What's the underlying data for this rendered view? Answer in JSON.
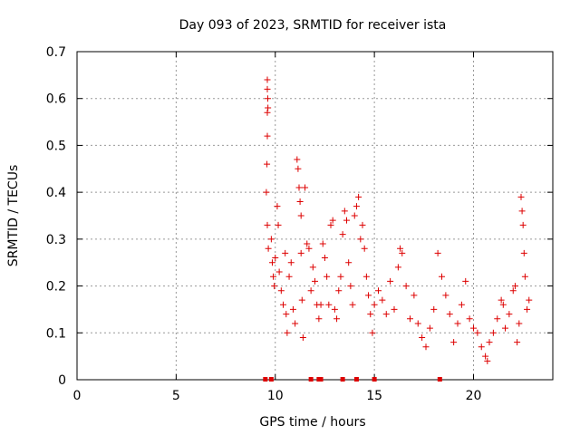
{
  "chart_data": {
    "type": "scatter",
    "title": "Day 093 of 2023, SRMTID for receiver ista",
    "xlabel": "GPS time / hours",
    "ylabel": "SRMTID / TECUs",
    "xlim": [
      0,
      24
    ],
    "ylim": [
      0,
      0.7
    ],
    "xticks": [
      0,
      5,
      10,
      15,
      20
    ],
    "yticks": [
      0,
      0.1,
      0.2,
      0.3,
      0.4,
      0.5,
      0.6,
      0.7
    ],
    "grid": true,
    "marker": "+",
    "color": "#dd0000",
    "series": [
      {
        "name": "SRMTID",
        "points": [
          [
            9.6,
            0.64
          ],
          [
            9.6,
            0.62
          ],
          [
            9.62,
            0.6
          ],
          [
            9.63,
            0.58
          ],
          [
            9.6,
            0.57
          ],
          [
            9.6,
            0.52
          ],
          [
            9.58,
            0.46
          ],
          [
            9.55,
            0.4
          ],
          [
            9.6,
            0.33
          ],
          [
            9.65,
            0.28
          ],
          [
            9.8,
            0.3
          ],
          [
            9.85,
            0.25
          ],
          [
            9.9,
            0.22
          ],
          [
            9.95,
            0.2
          ],
          [
            10.0,
            0.26
          ],
          [
            10.1,
            0.37
          ],
          [
            10.15,
            0.33
          ],
          [
            10.2,
            0.23
          ],
          [
            10.3,
            0.19
          ],
          [
            10.4,
            0.16
          ],
          [
            10.5,
            0.27
          ],
          [
            10.55,
            0.14
          ],
          [
            10.6,
            0.1
          ],
          [
            10.7,
            0.22
          ],
          [
            10.8,
            0.25
          ],
          [
            10.9,
            0.15
          ],
          [
            11.0,
            0.12
          ],
          [
            11.1,
            0.47
          ],
          [
            11.15,
            0.45
          ],
          [
            11.2,
            0.41
          ],
          [
            11.25,
            0.38
          ],
          [
            11.3,
            0.35
          ],
          [
            11.3,
            0.27
          ],
          [
            11.35,
            0.17
          ],
          [
            11.4,
            0.09
          ],
          [
            11.5,
            0.41
          ],
          [
            11.6,
            0.29
          ],
          [
            11.7,
            0.28
          ],
          [
            11.8,
            0.19
          ],
          [
            11.9,
            0.24
          ],
          [
            12.0,
            0.21
          ],
          [
            12.1,
            0.16
          ],
          [
            12.2,
            0.13
          ],
          [
            12.3,
            0.16
          ],
          [
            12.4,
            0.29
          ],
          [
            12.5,
            0.26
          ],
          [
            12.6,
            0.22
          ],
          [
            12.7,
            0.16
          ],
          [
            12.8,
            0.33
          ],
          [
            12.9,
            0.34
          ],
          [
            13.0,
            0.15
          ],
          [
            13.1,
            0.13
          ],
          [
            13.2,
            0.19
          ],
          [
            13.3,
            0.22
          ],
          [
            13.4,
            0.31
          ],
          [
            13.5,
            0.36
          ],
          [
            13.6,
            0.34
          ],
          [
            13.7,
            0.25
          ],
          [
            13.8,
            0.2
          ],
          [
            13.9,
            0.16
          ],
          [
            14.0,
            0.35
          ],
          [
            14.1,
            0.37
          ],
          [
            14.2,
            0.39
          ],
          [
            14.3,
            0.3
          ],
          [
            14.4,
            0.33
          ],
          [
            14.5,
            0.28
          ],
          [
            14.6,
            0.22
          ],
          [
            14.7,
            0.18
          ],
          [
            14.8,
            0.14
          ],
          [
            14.9,
            0.1
          ],
          [
            15.0,
            0.16
          ],
          [
            15.2,
            0.19
          ],
          [
            15.4,
            0.17
          ],
          [
            15.6,
            0.14
          ],
          [
            15.8,
            0.21
          ],
          [
            16.0,
            0.15
          ],
          [
            16.2,
            0.24
          ],
          [
            16.3,
            0.28
          ],
          [
            16.4,
            0.27
          ],
          [
            16.6,
            0.2
          ],
          [
            16.8,
            0.13
          ],
          [
            17.0,
            0.18
          ],
          [
            17.2,
            0.12
          ],
          [
            17.4,
            0.09
          ],
          [
            17.6,
            0.07
          ],
          [
            17.8,
            0.11
          ],
          [
            18.0,
            0.15
          ],
          [
            18.2,
            0.27
          ],
          [
            18.4,
            0.22
          ],
          [
            18.6,
            0.18
          ],
          [
            18.8,
            0.14
          ],
          [
            19.0,
            0.08
          ],
          [
            19.2,
            0.12
          ],
          [
            19.4,
            0.16
          ],
          [
            19.6,
            0.21
          ],
          [
            19.8,
            0.13
          ],
          [
            20.0,
            0.11
          ],
          [
            20.2,
            0.1
          ],
          [
            20.4,
            0.07
          ],
          [
            20.6,
            0.05
          ],
          [
            20.7,
            0.04
          ],
          [
            20.8,
            0.08
          ],
          [
            21.0,
            0.1
          ],
          [
            21.2,
            0.13
          ],
          [
            21.4,
            0.17
          ],
          [
            21.5,
            0.16
          ],
          [
            21.6,
            0.11
          ],
          [
            21.8,
            0.14
          ],
          [
            22.0,
            0.19
          ],
          [
            22.1,
            0.2
          ],
          [
            22.2,
            0.08
          ],
          [
            22.3,
            0.12
          ],
          [
            22.4,
            0.39
          ],
          [
            22.45,
            0.36
          ],
          [
            22.5,
            0.33
          ],
          [
            22.55,
            0.27
          ],
          [
            22.6,
            0.22
          ],
          [
            22.7,
            0.15
          ],
          [
            22.8,
            0.17
          ]
        ]
      }
    ],
    "gap_markers_x": [
      9.5,
      9.8,
      11.8,
      12.2,
      12.3,
      13.4,
      14.1,
      15.0,
      18.3
    ]
  }
}
